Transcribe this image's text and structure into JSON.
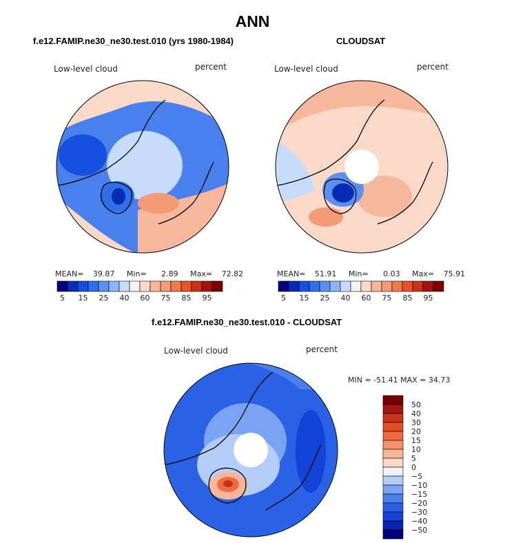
{
  "header": {
    "title": "ANN"
  },
  "colors": {
    "pos_scale": [
      "#00007f",
      "#0a2cb5",
      "#1550e0",
      "#2f6fe8",
      "#5b8ff0",
      "#8db4f5",
      "#c7dcfa",
      "#f2f2f2",
      "#fbd9c9",
      "#f7b79c",
      "#f49a76",
      "#ef7a4d",
      "#e55428",
      "#c8321a",
      "#a01510",
      "#7a0000"
    ],
    "diff_scale": [
      "#00007f",
      "#0a22b0",
      "#1342d6",
      "#2a62e6",
      "#4a80ee",
      "#7aa3f3",
      "#b3cdf8",
      "#eef2f7",
      "#fbd8c8",
      "#f8b598",
      "#f4906b",
      "#ee6b42",
      "#e54e22",
      "#c8321a",
      "#a21510",
      "#7a0000"
    ]
  },
  "panels": {
    "model": {
      "title": "f.e12.FAMIP.ne30_ne30.test.010 (yrs 1980-1984)",
      "variable": "Low-level cloud",
      "units": "percent",
      "mean_label": "MEAN=",
      "mean": "39.87",
      "min_label": "Min=",
      "min": "2.89",
      "max_label": "Max=",
      "max": "72.82"
    },
    "obs": {
      "title": "CLOUDSAT",
      "variable": "Low-level cloud",
      "units": "percent",
      "mean_label": "MEAN=",
      "mean": "51.91",
      "min_label": "Min=",
      "min": "0.03",
      "max_label": "Max=",
      "max": "75.91"
    },
    "diff": {
      "title": "f.e12.FAMIP.ne30_ne30.test.010 - CLOUDSAT",
      "variable": "Low-level cloud",
      "units": "percent",
      "minmax_text": "MIN = -51.41 MAX =  34.73"
    }
  },
  "colorbar": {
    "tick_labels": [
      "5",
      "15",
      "25",
      "40",
      "60",
      "75",
      "85",
      "95"
    ]
  },
  "diff_colorbar": {
    "tick_labels": [
      "50",
      "40",
      "30",
      "20",
      "15",
      "10",
      "5",
      "0",
      "−5",
      "−10",
      "−15",
      "−20",
      "−30",
      "−40",
      "−50"
    ]
  }
}
